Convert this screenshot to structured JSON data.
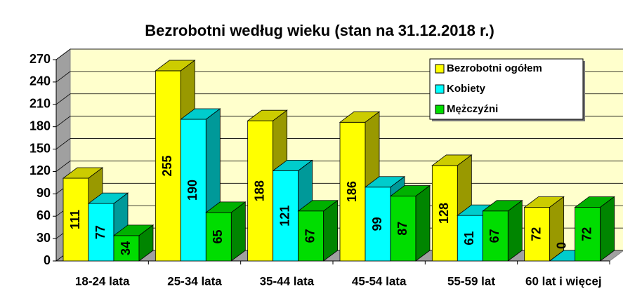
{
  "chart_data": {
    "type": "bar",
    "title": "Bezrobotni według wieku (stan na 31.12.2018 r.)",
    "categories": [
      "18-24 lata",
      "25-34 lata",
      "35-44 lata",
      "45-54 lata",
      "55-59 lat",
      "60 lat i więcej"
    ],
    "series": [
      {
        "name": "Bezrobotni ogółem",
        "color": "#ffff00",
        "values": [
          111,
          255,
          188,
          186,
          128,
          72
        ]
      },
      {
        "name": "Kobiety",
        "color": "#00ffff",
        "values": [
          77,
          190,
          121,
          99,
          61,
          0
        ]
      },
      {
        "name": "Mężczyźni",
        "color": "#00dd00",
        "values": [
          34,
          65,
          67,
          87,
          67,
          72
        ]
      }
    ],
    "ylim": [
      0,
      270
    ],
    "yticks": [
      0,
      30,
      60,
      90,
      120,
      150,
      180,
      210,
      240,
      270
    ],
    "grid": true,
    "legend": "top-right"
  }
}
